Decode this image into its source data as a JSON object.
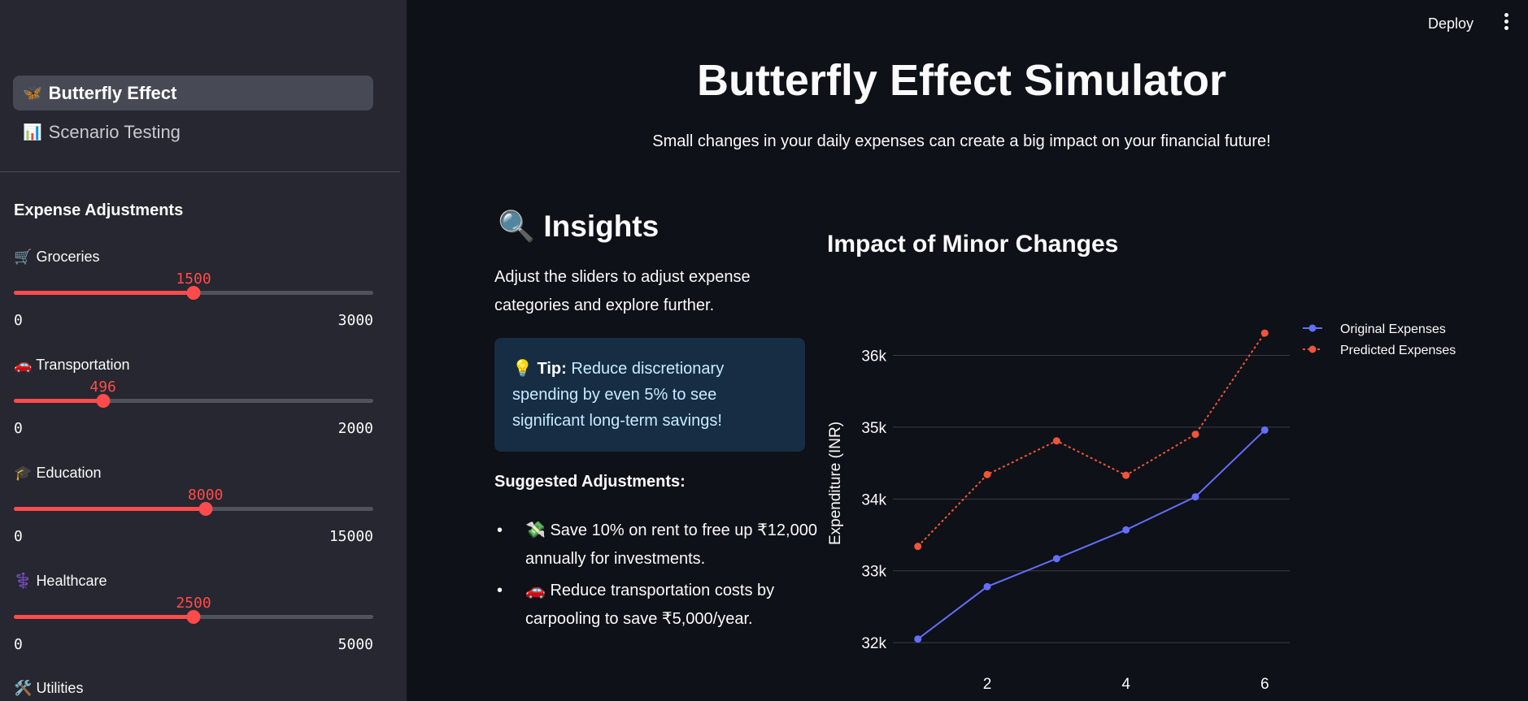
{
  "header": {
    "deploy_label": "Deploy",
    "menu_icon": "more-vertical-icon"
  },
  "sidebar": {
    "nav": [
      {
        "icon": "🦋",
        "label": "Butterfly Effect",
        "active": true
      },
      {
        "icon": "📊",
        "label": "Scenario Testing",
        "active": false
      }
    ],
    "section_title": "Expense Adjustments",
    "sliders": [
      {
        "icon": "🛒",
        "label": "Groceries",
        "value": 1500,
        "min": 0,
        "max": 3000
      },
      {
        "icon": "🚗",
        "label": "Transportation",
        "value": 496,
        "min": 0,
        "max": 2000
      },
      {
        "icon": "🎓",
        "label": "Education",
        "value": 8000,
        "min": 0,
        "max": 15000
      },
      {
        "icon": "⚕️",
        "label": "Healthcare",
        "value": 2500,
        "min": 0,
        "max": 5000
      },
      {
        "icon": "🛠️",
        "label": "Utilities"
      }
    ]
  },
  "main": {
    "title": "Butterfly Effect Simulator",
    "subtitle": "Small changes in your daily expenses can create a big impact on your financial future!",
    "insights": {
      "icon": "🔍",
      "title": "Insights",
      "text": "Adjust the sliders to adjust expense categories and explore further.",
      "tip_icon": "💡",
      "tip_label": "Tip:",
      "tip_text": "Reduce discretionary spending by even 5% to see significant long-term savings!",
      "suggest_title": "Suggested Adjustments:",
      "suggestions": [
        {
          "icon": "💸",
          "text": "Save 10% on rent to free up ₹12,000 annually for investments."
        },
        {
          "icon": "🚗",
          "text": "Reduce transportation costs by carpooling to save ₹5,000/year."
        }
      ]
    }
  },
  "chart_data": {
    "type": "line",
    "title": "Impact of Minor Changes",
    "xlabel": "",
    "ylabel": "Expenditure (INR)",
    "x": [
      1,
      2,
      3,
      4,
      5,
      6
    ],
    "xticks": [
      2,
      4,
      6
    ],
    "xtick_labels": [
      "2",
      "4",
      "6"
    ],
    "yticks": [
      32000,
      33000,
      34000,
      35000,
      36000
    ],
    "ytick_labels": [
      "32k",
      "33k",
      "34k",
      "35k",
      "36k"
    ],
    "xlim": [
      0.64,
      6.36
    ],
    "ylim": [
      31900,
      36650
    ],
    "grid": true,
    "legend_position": "top-right",
    "series": [
      {
        "name": "Original Expenses",
        "values": [
          32050,
          32780,
          33170,
          33570,
          34030,
          34960
        ],
        "color": "#636efa",
        "dash": "solid"
      },
      {
        "name": "Predicted Expenses",
        "values": [
          33340,
          34340,
          34810,
          34330,
          34900,
          36310
        ],
        "color": "#ef553b",
        "dash": "dotted"
      }
    ]
  }
}
